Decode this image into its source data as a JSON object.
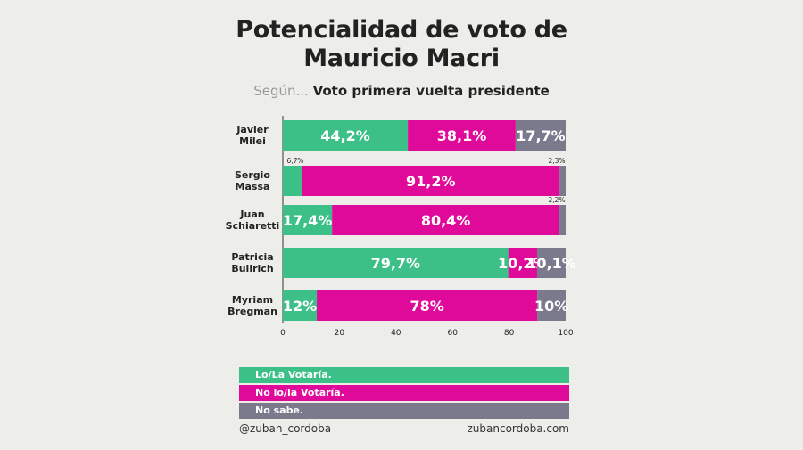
{
  "title_line1": "Potencialidad de voto de",
  "title_line2": "Mauricio Macri",
  "subtitle_prefix": "Según...",
  "subtitle_main": "Voto primera vuelta presidente",
  "chart_data": {
    "type": "bar",
    "orientation": "horizontal",
    "stacked": true,
    "categories": [
      [
        "Javier",
        "Milei"
      ],
      [
        "Sergio",
        "Massa"
      ],
      [
        "Juan",
        "Schiaretti"
      ],
      [
        "Patricia",
        "Bullrich"
      ],
      [
        "Myriam",
        "Bregman"
      ]
    ],
    "series": [
      {
        "name": "Lo/La Votaría.",
        "color": "#3dbf88",
        "values": [
          44.2,
          6.7,
          17.4,
          79.7,
          12
        ],
        "labels": [
          "44,2%",
          "6,7%",
          "17,4%",
          "79,7%",
          "12%"
        ]
      },
      {
        "name": "No lo/la Votaría.",
        "color": "#e00a9a",
        "values": [
          38.1,
          91.2,
          80.4,
          10.2,
          78
        ],
        "labels": [
          "38,1%",
          "91,2%",
          "80,4%",
          "10,2%",
          "78%"
        ]
      },
      {
        "name": "No sabe.",
        "color": "#7a7a8c",
        "values": [
          17.7,
          2.3,
          2.2,
          10.1,
          10
        ],
        "labels": [
          "17,7%",
          "2,3%",
          "2,2%",
          "10,1%",
          "10%"
        ]
      }
    ],
    "xlim": [
      0,
      100
    ],
    "xticks": [
      0,
      20,
      40,
      60,
      80,
      100
    ],
    "grid": false,
    "legend_position": "bottom"
  },
  "footer": {
    "handle": "@zuban_cordoba",
    "website": "zubancordoba.com"
  }
}
